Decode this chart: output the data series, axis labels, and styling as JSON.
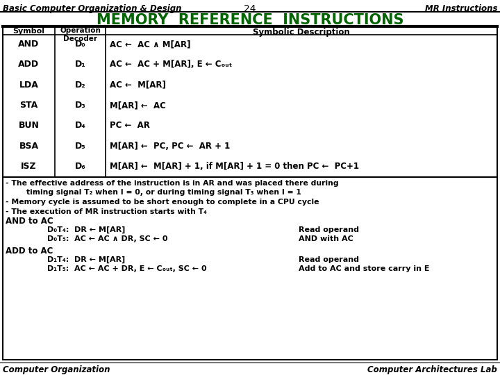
{
  "header_left": "Basic Computer Organization & Design",
  "header_center": "24",
  "header_right": "MR Instructions",
  "title": "MEMORY  REFERENCE  INSTRUCTIONS",
  "title_color": "#006400",
  "table_row_symbols": [
    "AND",
    "ADD",
    "LDA",
    "STA",
    "BUN",
    "BSA",
    "ISZ"
  ],
  "table_row_decoders": [
    "D₀",
    "D₁",
    "D₂",
    "D₃",
    "D₄",
    "D₅",
    "D₆"
  ],
  "table_row_descs": [
    "AC ←  AC ∧ M[AR]",
    "AC ←  AC + M[AR], E ← Cₒᵤₜ",
    "AC ←  M[AR]",
    "M[AR] ←  AC",
    "PC ←  AR",
    "M[AR] ←  PC, PC ←  AR + 1",
    "M[AR] ←  M[AR] + 1, if M[AR] + 1 = 0 then PC ←  PC+1"
  ],
  "note1": "- The effective address of the instruction is in AR and was placed there during",
  "note2": "        timing signal T₂ when I = 0, or during timing signal T₃ when I = 1",
  "note3": "- Memory cycle is assumed to be short enough to complete in a CPU cycle",
  "note4": "- The execution of MR instruction starts with T₄",
  "and_header": "AND to AC",
  "and_d0t4_left": "D₀T₄:  DR ← M[AR]",
  "and_d0t4_right": "Read operand",
  "and_d0t5_left": "D₀T₅:  AC ← AC ∧ DR, SC ← 0",
  "and_d0t5_right": "AND with AC",
  "add_header": "ADD to AC",
  "add_d1t4_left": "D₁T₄:  DR ← M[AR]",
  "add_d1t4_right": "Read operand",
  "add_d1t5_left": "D₁T₅:  AC ← AC + DR, E ← Cₒᵤₜ, SC ← 0",
  "add_d1t5_right": "Add to AC and store carry in E",
  "footer_left": "Computer Organization",
  "footer_right": "Computer Architectures Lab",
  "bg_color": "#ffffff"
}
